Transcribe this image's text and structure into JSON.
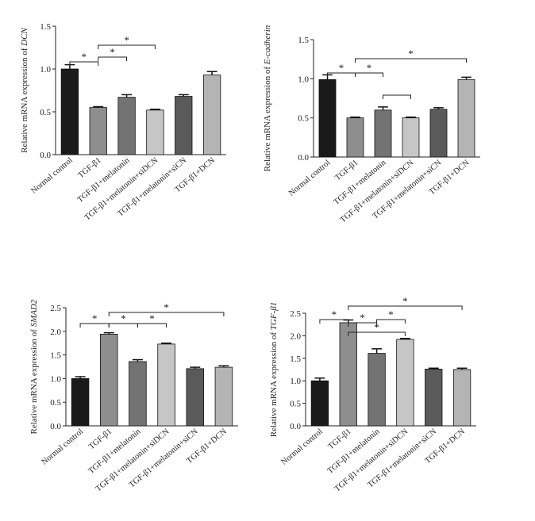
{
  "chart_data": [
    {
      "type": "bar",
      "ylabel_prefix": "Relative mRNA expression of",
      "ylabel_gene": "DCN",
      "ylim": [
        0,
        1.5
      ],
      "yticks": [
        "0.0",
        "0.5",
        "1.0",
        "1.5"
      ],
      "categories": [
        "Normal control",
        "TGF-β1",
        "TGF-β1+melatonin",
        "TGF-β1+melatonin+siDCN",
        "TGF-β1+melatonin+siCN",
        "TGF-β1+DCN"
      ],
      "values": [
        1.0,
        0.55,
        0.67,
        0.52,
        0.68,
        0.93
      ],
      "errors": [
        0.05,
        0.01,
        0.03,
        0.01,
        0.02,
        0.04
      ],
      "significance": [
        {
          "from": 0,
          "to": 1,
          "label": "*"
        },
        {
          "from": 1,
          "to": 2,
          "label": "*"
        },
        {
          "from": 1,
          "to": 3,
          "label": "*"
        }
      ]
    },
    {
      "type": "bar",
      "ylabel_prefix": "Relative mRNA expression of",
      "ylabel_gene": "E-cadherin",
      "ylim": [
        0,
        1.5
      ],
      "yticks": [
        "0.0",
        "0.5",
        "1.0",
        "1.5"
      ],
      "categories": [
        "Normal control",
        "TGF-β1",
        "TGF-β1+melatonin",
        "TGF-β1+melatonin+siDCN",
        "TGF-β1+melatonin+siCN",
        "TGF-β1+DCN"
      ],
      "values": [
        0.99,
        0.5,
        0.6,
        0.5,
        0.61,
        0.99
      ],
      "errors": [
        0.06,
        0.01,
        0.04,
        0.01,
        0.02,
        0.03
      ],
      "significance": [
        {
          "from": 0,
          "to": 1,
          "label": "*"
        },
        {
          "from": 1,
          "to": 2,
          "label": "*"
        },
        {
          "from": 2,
          "to": 3,
          "label": ""
        },
        {
          "from": 1,
          "to": 5,
          "label": "*"
        }
      ]
    },
    {
      "type": "bar",
      "ylabel_prefix": "Relative mRNA expression of",
      "ylabel_gene": "SMAD2",
      "ylim": [
        0,
        2.5
      ],
      "yticks": [
        "0.0",
        "0.5",
        "1.0",
        "1.5",
        "2.0",
        "2.5"
      ],
      "categories": [
        "Normal control",
        "TGF-β1",
        "TGF-β1+melatonin",
        "TGF-β1+melatonin+siDCN",
        "TGF-β1+melatonin+siCN",
        "TGF-β1+DCN"
      ],
      "values": [
        1.0,
        1.94,
        1.36,
        1.73,
        1.21,
        1.24
      ],
      "errors": [
        0.04,
        0.03,
        0.04,
        0.02,
        0.03,
        0.03
      ],
      "significance": [
        {
          "from": 0,
          "to": 1,
          "label": "*"
        },
        {
          "from": 1,
          "to": 2,
          "label": "*"
        },
        {
          "from": 2,
          "to": 3,
          "label": "*"
        },
        {
          "from": 1,
          "to": 5,
          "label": "*"
        }
      ]
    },
    {
      "type": "bar",
      "ylabel_prefix": "Relative mRNA expression of",
      "ylabel_gene": "TGF-β1",
      "ylim": [
        0,
        2.5
      ],
      "yticks": [
        "0.0",
        "0.5",
        "1.0",
        "1.5",
        "2.0",
        "2.5"
      ],
      "categories": [
        "Normal control",
        "TGF-β1",
        "TGF-β1+melatonin",
        "TGF-β1+melatonin+siDCN",
        "TGF-β1+melatonin+siCN",
        "TGF-β1+DCN"
      ],
      "values": [
        1.0,
        2.29,
        1.61,
        1.92,
        1.26,
        1.25
      ],
      "errors": [
        0.06,
        0.06,
        0.1,
        0.02,
        0.02,
        0.03
      ],
      "significance": [
        {
          "from": 0,
          "to": 1,
          "label": "*"
        },
        {
          "from": 1,
          "to": 2,
          "label": "*"
        },
        {
          "from": 1,
          "to": 3,
          "label": "*"
        },
        {
          "from": 2,
          "to": 3,
          "label": "*"
        },
        {
          "from": 1,
          "to": 5,
          "label": "*"
        }
      ]
    }
  ],
  "bar_colors": [
    "#1a1a1a",
    "#8e8e8e",
    "#737373",
    "#c6c6c6",
    "#5a5a5a",
    "#b4b4b4"
  ]
}
